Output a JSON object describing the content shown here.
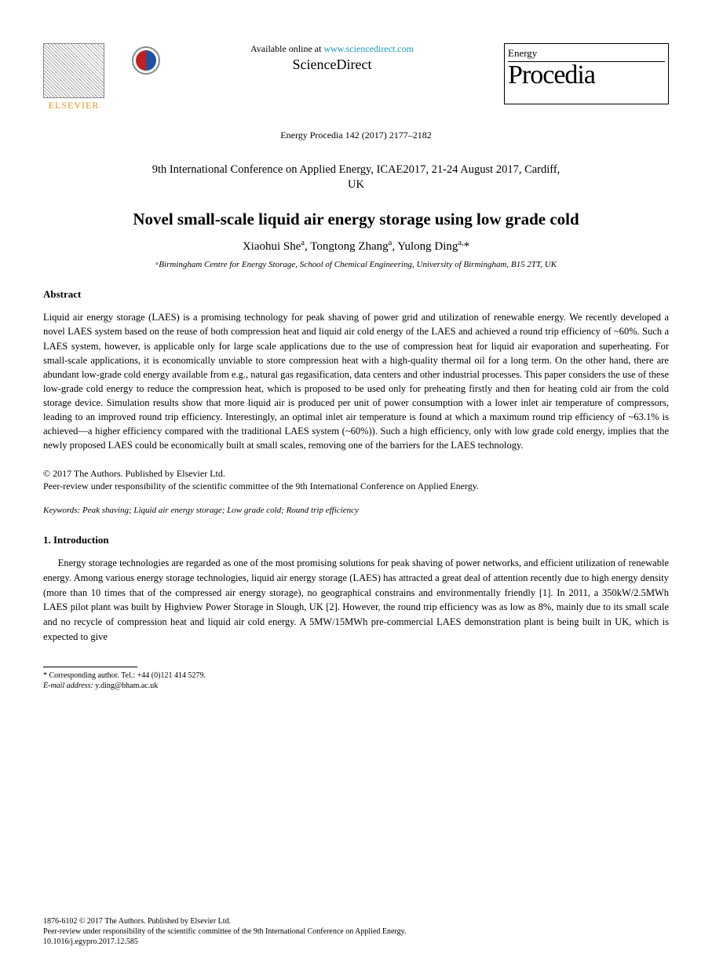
{
  "header": {
    "elsevier_label": "ELSEVIER",
    "available_line1": "Available online at",
    "sciencedirect_brand": "ScienceDirect",
    "sd_url": "www.sciencedirect.com",
    "journal_top": "Energy",
    "journal_main": "Procedia"
  },
  "citation": "Energy Procedia 142 (2017) 2177–2182",
  "conference": {
    "line1": "9th International Conference on Applied Energy, ICAE2017, 21-24 August 2017, Cardiff,",
    "line2": "UK"
  },
  "title": "Novel small-scale liquid air energy storage using low grade cold",
  "authors_html": "Xiaohui She<sup>a</sup>, Tongtong Zhang<sup>a</sup>, Yulong Ding<sup>a,</sup>*",
  "affiliation": "ᵃBirmingham Centre for Energy Storage, School of Chemical Engineering, University of Birmingham, B15 2TT, UK",
  "abstract": {
    "heading": "Abstract",
    "text": "Liquid air energy storage (LAES) is a promising technology for peak shaving of power grid and utilization of renewable energy. We recently developed a novel LAES system based on the reuse of both compression heat and liquid air cold energy of the LAES and achieved a round trip efficiency of ~60%. Such a LAES system, however, is applicable only for large scale applications due to the use of compression heat for liquid air evaporation and superheating. For small-scale applications, it is economically unviable to store compression heat with a high-quality thermal oil for a long term. On the other hand, there are abundant low-grade cold energy available from e.g., natural gas regasification, data centers and other industrial processes. This paper considers the use of these low-grade cold energy to reduce the compression heat, which is proposed to be used only for preheating firstly and then for heating cold air from the cold storage device. Simulation results show that more liquid air is produced per unit of power consumption with a lower inlet air temperature of compressors, leading to an improved round trip efficiency. Interestingly, an optimal inlet air temperature is found at which a maximum round trip efficiency of ~63.1% is achieved—a higher efficiency compared with the traditional LAES system (~60%)). Such a high efficiency, only with low grade cold energy, implies that the newly proposed LAES could be economically built at small scales, removing one of the barriers for the LAES technology."
  },
  "copyright": {
    "line1": "© 2017 The Authors. Published by Elsevier Ltd.",
    "line2": "Peer-review under responsibility of the scientific committee of the 9th International Conference on Applied Energy."
  },
  "keywords": "Keywords: Peak shaving; Liquid air energy storage; Low grade cold; Round trip efficiency",
  "intro": {
    "heading": "1. Introduction",
    "p1": "Energy storage technologies are regarded as one of the most promising solutions for peak shaving of power networks, and efficient utilization of renewable energy. Among various energy storage technologies, liquid air energy storage (LAES) has attracted a great deal of attention recently due to high energy density (more than 10 times that of the compressed air energy storage), no geographical constrains and environmentally friendly [1]. In 2011, a 350kW/2.5MWh LAES pilot plant was built by Highview Power Storage in Slough, UK [2]. However, the round trip efficiency was as low as 8%, mainly due to its small scale and no recycle of compression heat and liquid air cold energy. A 5MW/15MWh pre-commercial LAES demonstration plant is being built in UK, which is expected to give"
  },
  "footnote": {
    "corr": "* Corresponding author. Tel.: +44 (0)121 414 5279.",
    "email_label": "E-mail address:",
    "email": "y.ding@bham.ac.uk"
  },
  "footer": {
    "issn": "1876-6102 © 2017 The Authors. Published by Elsevier Ltd.",
    "peer": "Peer-review under responsibility of the scientific committee of the 9th International Conference on Applied Energy.",
    "doi": "10.1016/j.egypro.2017.12.585"
  },
  "colors": {
    "link": "#1899b6",
    "elsevier_orange": "#e6941e",
    "text": "#000000",
    "bg": "#ffffff"
  }
}
